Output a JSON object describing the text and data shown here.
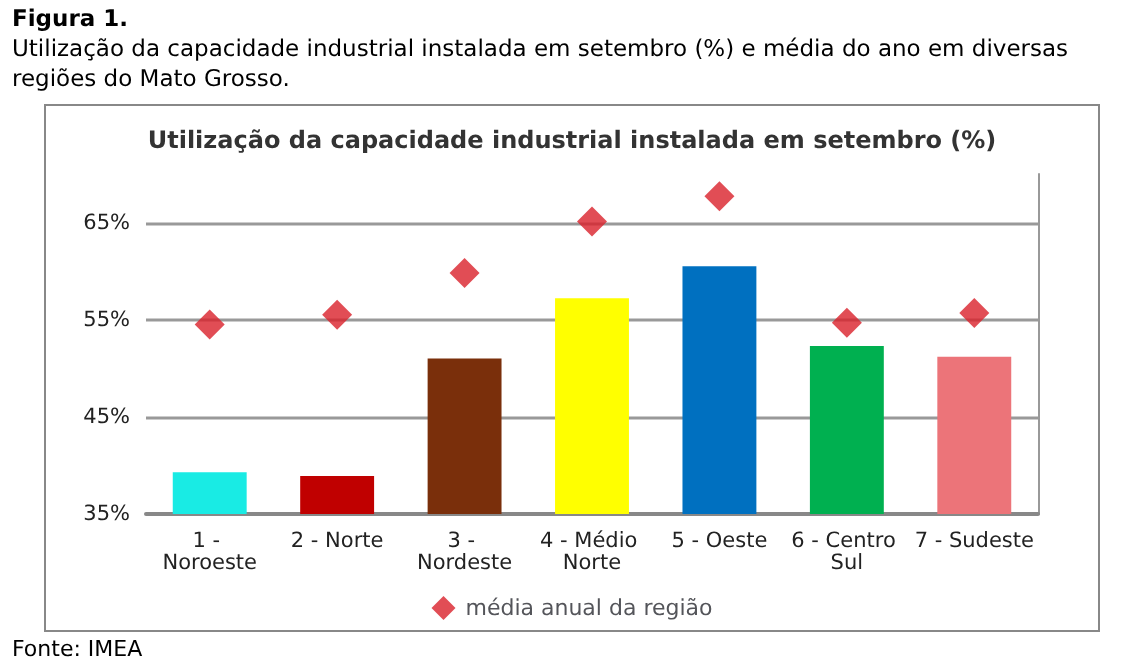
{
  "chart_data": {
    "type": "bar",
    "title": "Utilização da capacidade industrial instalada em setembro (%)",
    "annotations": [
      "Figura 1.",
      "Utilização da capacidade industrial instalada em setembro (%) e média do ano em diversas regiões do Mato Grosso.",
      "Fonte: IMEA"
    ],
    "categories": [
      "1 - Noroeste",
      "2 - Norte",
      "3 - Nordeste",
      "4 - Médio Norte",
      "5 - Oeste",
      "6 - Centro Sul",
      "7 - Sudeste"
    ],
    "series": [
      {
        "colors": [
          "#19ebe4",
          "#c00000",
          "#7a2f0b",
          "#ffff00",
          "#0070c0",
          "#00b050",
          "#ec7479"
        ],
        "values": [
          39.3,
          38.9,
          51.0,
          57.2,
          60.5,
          52.3,
          51.2
        ]
      },
      {
        "type": "scatter",
        "name": "média anual da região",
        "color": "#d9202a",
        "values": [
          54.5,
          55.5,
          59.8,
          65.1,
          67.7,
          54.7,
          55.7
        ]
      }
    ],
    "ylim": [
      35,
      70
    ],
    "yticks": [
      {
        "value": 35,
        "label": "35%"
      },
      {
        "value": 45,
        "label": "45%"
      },
      {
        "value": 55,
        "label": "55%"
      },
      {
        "value": 65,
        "label": "65%"
      }
    ],
    "grid": "y",
    "legend": "bottom",
    "marker": "diamond"
  }
}
